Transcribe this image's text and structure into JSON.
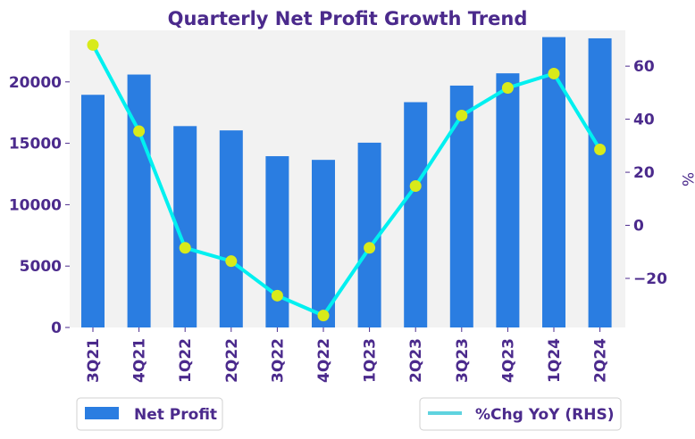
{
  "chart_data": {
    "type": "bar+line",
    "title": "Quarterly Net Profit Growth Trend",
    "categories": [
      "3Q21",
      "4Q21",
      "1Q22",
      "2Q22",
      "3Q22",
      "4Q22",
      "1Q23",
      "2Q23",
      "3Q23",
      "4Q23",
      "1Q24",
      "2Q24"
    ],
    "series": [
      {
        "name": "Net Profit",
        "kind": "bar",
        "axis": "left",
        "color": "#2a7de1",
        "values": [
          18950,
          20600,
          16400,
          16050,
          13950,
          13650,
          15050,
          18350,
          19700,
          20700,
          23650,
          23550
        ]
      },
      {
        "name": "%Chg YoY (RHS)",
        "kind": "line",
        "axis": "right",
        "color": "#00f0f0",
        "marker_color": "#d8ea1a",
        "values": [
          68,
          35.5,
          -8.5,
          -13.5,
          -26.5,
          -34,
          -8.5,
          14.8,
          41.4,
          51.8,
          57.2,
          28.6
        ]
      }
    ],
    "y_left": {
      "ylim": [
        0,
        24200
      ],
      "ticks": [
        0,
        5000,
        10000,
        15000,
        20000
      ]
    },
    "y_right": {
      "label": "%",
      "ylim": [
        -38.5,
        73.5
      ],
      "ticks": [
        -20,
        0,
        20,
        40,
        60
      ],
      "tick_labels": [
        "−20",
        "0",
        "20",
        "40",
        "60"
      ]
    },
    "legend": {
      "items": [
        "Net Profit",
        "%Chg YoY (RHS)"
      ],
      "placement": "bottom"
    },
    "colors": {
      "plot_bg": "#f2f2f2",
      "text": "#4b2a8c",
      "legend_line": "#5fd3df"
    }
  }
}
